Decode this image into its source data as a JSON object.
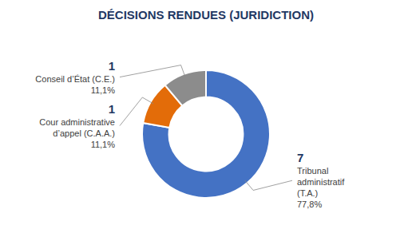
{
  "chart_data": {
    "type": "pie",
    "title": "DÉCISIONS RENDUES (JURIDICTION)",
    "categories": [
      [
        "Tribunal",
        "administratif",
        "(T.A.)"
      ],
      [
        "Cour administrative",
        "d’appel (C.A.A.)"
      ],
      [
        "Conseil d’État (C.E.)"
      ]
    ],
    "values": [
      7,
      1,
      1
    ],
    "data_labels": true,
    "shares": [
      77.8,
      11.1,
      11.1
    ],
    "share_labels": [
      "77,8%",
      "11,1%",
      "11,1%"
    ],
    "colors": [
      "#4472C4",
      "#E36C09",
      "#8C8C8C"
    ]
  }
}
